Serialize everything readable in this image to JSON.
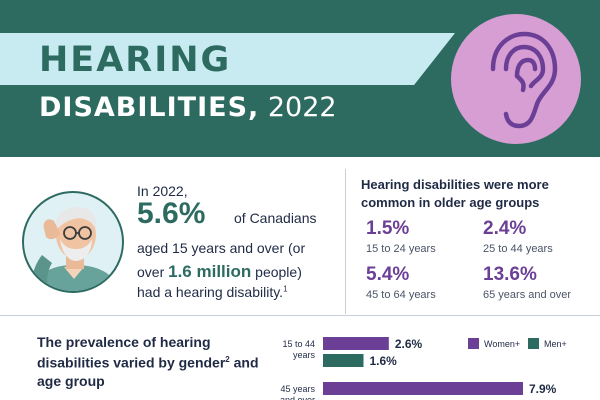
{
  "header": {
    "title_line1": "HEARING",
    "title_line2_bold": "DISABILITIES,",
    "title_line2_year": " 2022"
  },
  "icons": {
    "header_badge": "ear-icon",
    "illustration": "elderly-man-cupping-ear-illustration"
  },
  "colors": {
    "header_bg": "#2d6b61",
    "title_strip": "#c7ebf1",
    "badge": "#d69ed2",
    "accent_purple": "#6b3f96",
    "accent_green": "#2d6b61"
  },
  "key_stat": {
    "line1": "In 2022,",
    "percent": "5.6%",
    "line2_rest": "of Canadians",
    "line3": "aged 15 years and over (or",
    "line4_pre": "over ",
    "line4_big": "1.6 million",
    "line4_post": " people)",
    "line5": "had a hearing disability.",
    "footnote_mark": "1"
  },
  "age_groups": {
    "heading": "Hearing disabilities were more common in older age groups",
    "items": [
      {
        "value": "1.5%",
        "label": "15 to 24 years"
      },
      {
        "value": "2.4%",
        "label": "25 to 44 years"
      },
      {
        "value": "5.4%",
        "label": "45 to 64 years"
      },
      {
        "value": "13.6%",
        "label": "65 years and over"
      }
    ]
  },
  "gender": {
    "heading": "The prevalence of hearing disabilities varied by gender",
    "heading_sup": "2",
    "heading_tail": " and age group"
  },
  "chart_data": {
    "type": "bar",
    "orientation": "horizontal",
    "categories": [
      "15 to 44 years",
      "45 years and over"
    ],
    "category_lines": [
      [
        "15 to 44",
        "years"
      ],
      [
        "45 years",
        "and over"
      ]
    ],
    "series": [
      {
        "name": "Women+",
        "values": [
          2.6,
          7.9
        ],
        "labels": [
          "2.6%",
          "7.9%"
        ],
        "color": "#6b3f96"
      },
      {
        "name": "Men+",
        "values": [
          1.6,
          null
        ],
        "labels": [
          "1.6%",
          null
        ],
        "color": "#2d6b61"
      }
    ],
    "legend": "top-right"
  }
}
